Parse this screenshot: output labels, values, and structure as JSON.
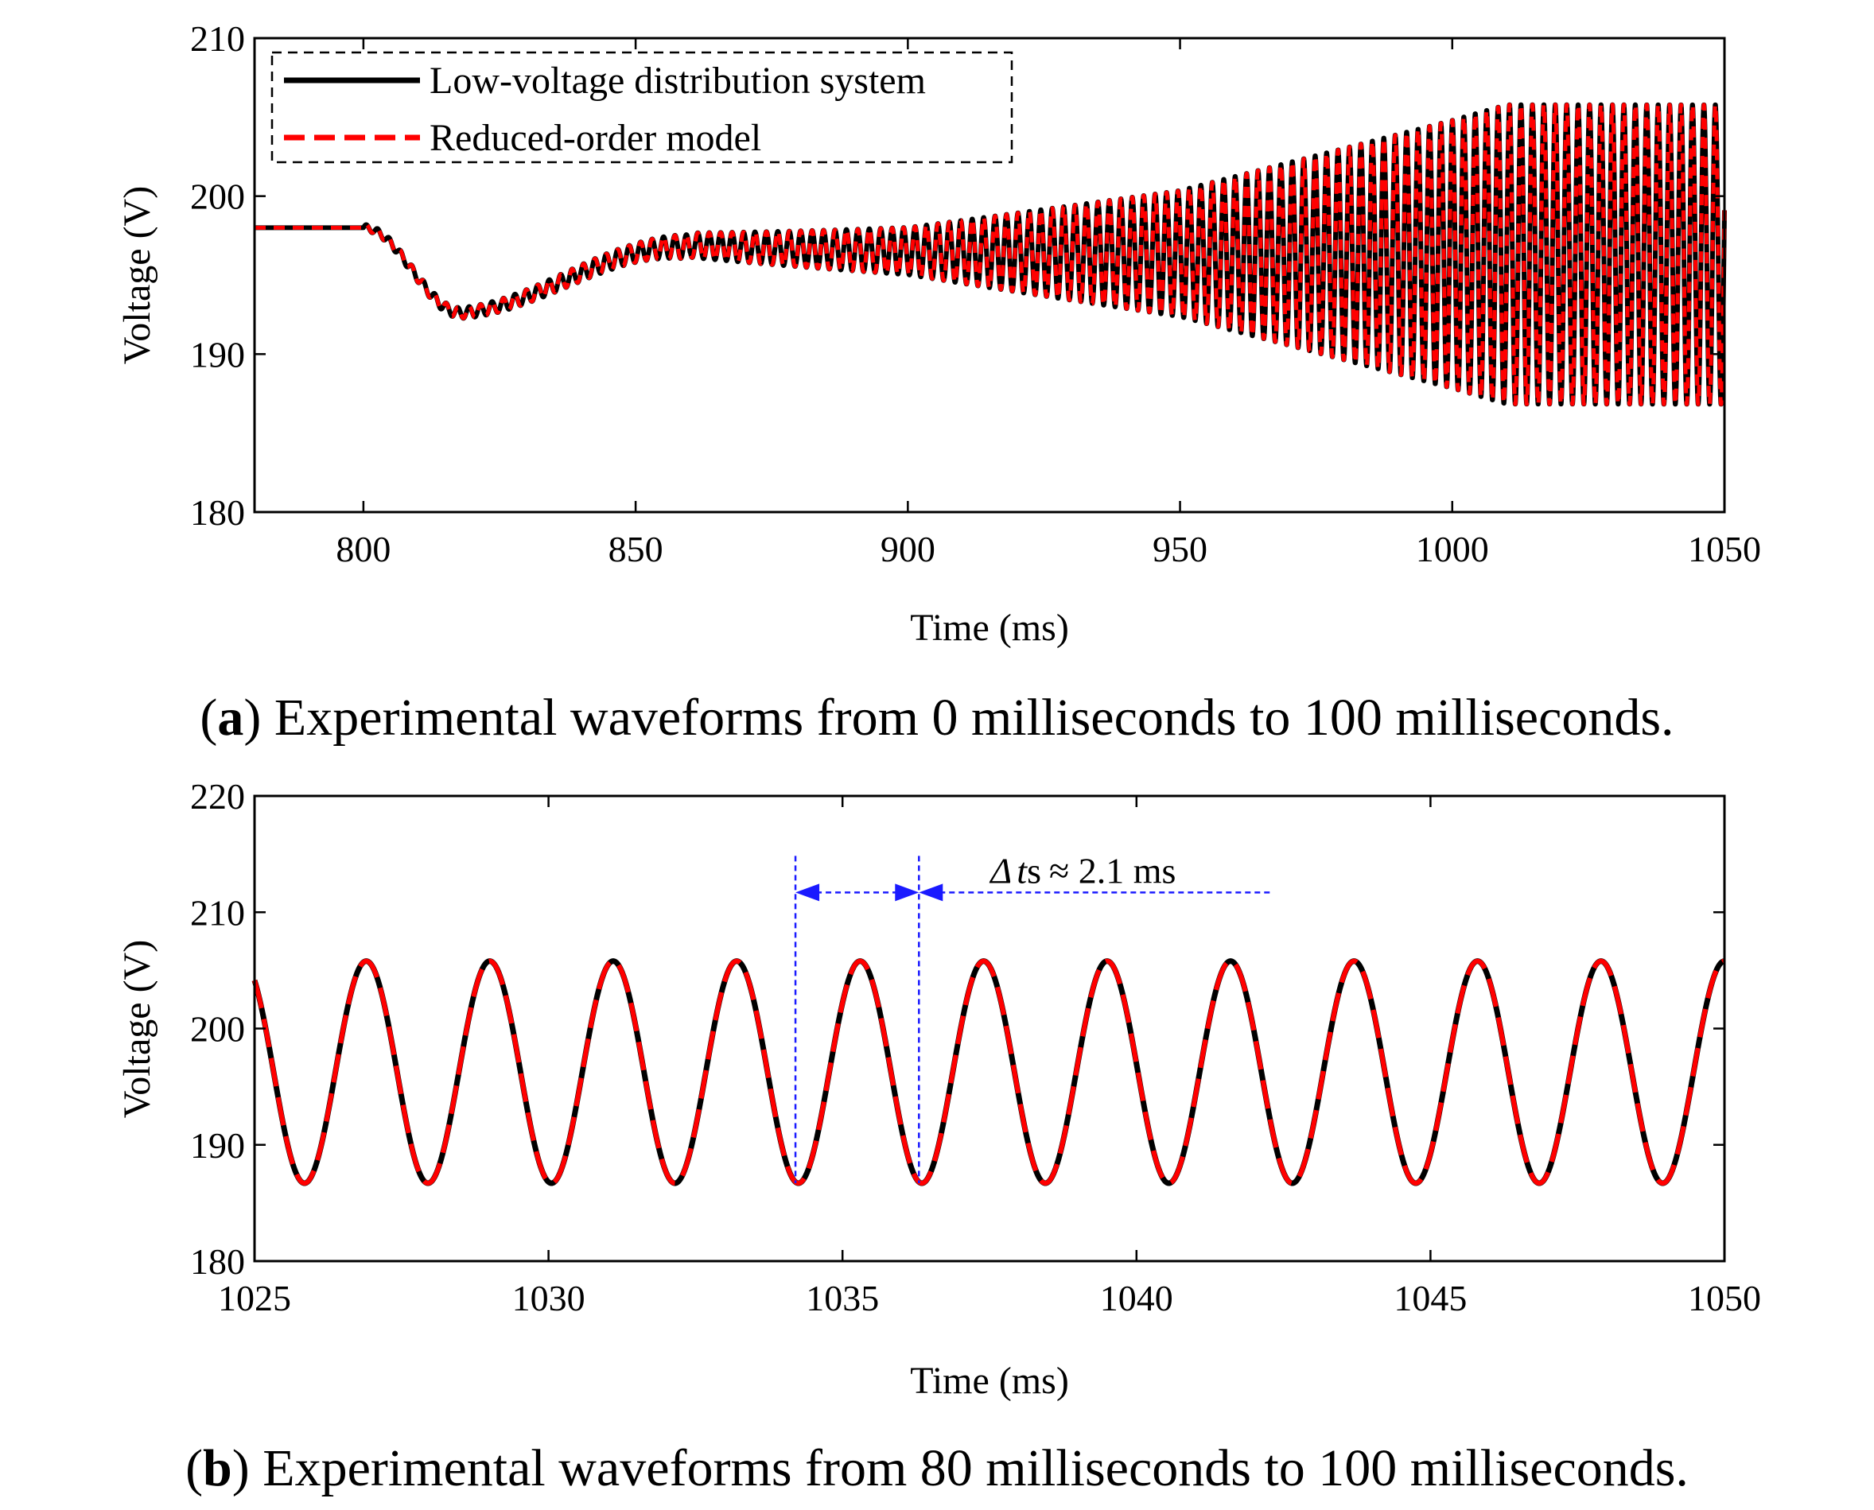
{
  "chart_data": [
    {
      "type": "line",
      "panel": "a",
      "caption_letter": "a",
      "caption_text": "Experimental waveforms from 0 milliseconds to 100 milliseconds.",
      "xlabel": "Time (ms)",
      "ylabel": "Voltage (V)",
      "xlim": [
        780,
        1050
      ],
      "ylim": [
        180,
        210
      ],
      "xticks": [
        800,
        850,
        900,
        950,
        1000,
        1050
      ],
      "yticks": [
        180,
        190,
        200,
        210
      ],
      "grid": false,
      "legend_position": "top-left",
      "series": [
        {
          "name": "Low-voltage distribution system",
          "color": "#000000",
          "style": "solid",
          "model": {
            "steady_before_ms": 800,
            "initial_voltage": 198,
            "dip_min_voltage": 192.6,
            "dip_time_ms": 818,
            "oscillation_period_ms": 2.1,
            "amplitude_envelope": [
              [
                800,
                0.2
              ],
              [
                850,
                0.6
              ],
              [
                900,
                1.5
              ],
              [
                950,
                4.0
              ],
              [
                1000,
                8.5
              ],
              [
                1010,
                9.5
              ],
              [
                1050,
                9.5
              ]
            ],
            "center_voltage_after_ms": 196.3,
            "oscillation_band_at_1050": [
              186.7,
              205.8
            ]
          }
        },
        {
          "name": "Reduced-order model",
          "color": "#ff0000",
          "style": "dashed",
          "model": {
            "steady_before_ms": 800,
            "initial_voltage": 198,
            "dip_min_voltage": 192.6,
            "dip_time_ms": 818,
            "oscillation_period_ms": 2.1,
            "amplitude_envelope": [
              [
                800,
                0.2
              ],
              [
                850,
                0.6
              ],
              [
                900,
                1.5
              ],
              [
                950,
                4.0
              ],
              [
                1000,
                8.5
              ],
              [
                1010,
                9.5
              ],
              [
                1050,
                9.5
              ]
            ],
            "center_voltage_after_ms": 196.3,
            "oscillation_band_at_1050": [
              186.7,
              205.8
            ]
          }
        }
      ]
    },
    {
      "type": "line",
      "panel": "b",
      "caption_letter": "b",
      "caption_text": "Experimental waveforms from 80 milliseconds to 100 milliseconds.",
      "xlabel": "Time (ms)",
      "ylabel": "Voltage (V)",
      "xlim": [
        1025,
        1050
      ],
      "ylim": [
        180,
        220
      ],
      "xticks": [
        1025,
        1030,
        1035,
        1040,
        1045,
        1050
      ],
      "yticks": [
        180,
        190,
        200,
        210,
        220
      ],
      "grid": false,
      "series": [
        {
          "name": "Low-voltage distribution system",
          "color": "#000000",
          "style": "solid",
          "model": {
            "min_voltage": 186.7,
            "max_voltage": 205.8,
            "period_ms": 2.1,
            "first_peak_ms": 1026.9
          }
        },
        {
          "name": "Reduced-order model",
          "color": "#ff0000",
          "style": "dashed",
          "model": {
            "min_voltage": 186.7,
            "max_voltage": 205.8,
            "period_ms": 2.1,
            "first_peak_ms": 1026.9
          }
        }
      ],
      "annotation": {
        "delta_symbol": "Δ",
        "t_symbol": "t",
        "subscript": "s",
        "approx_text": "≈ 2.1 ms",
        "from_ms": 1034.2,
        "to_ms": 1036.3,
        "label_voltage": 211.7,
        "arrow_voltage": 211.7,
        "line_end_ms": 1042.3,
        "color": "#1a1aff"
      }
    }
  ]
}
